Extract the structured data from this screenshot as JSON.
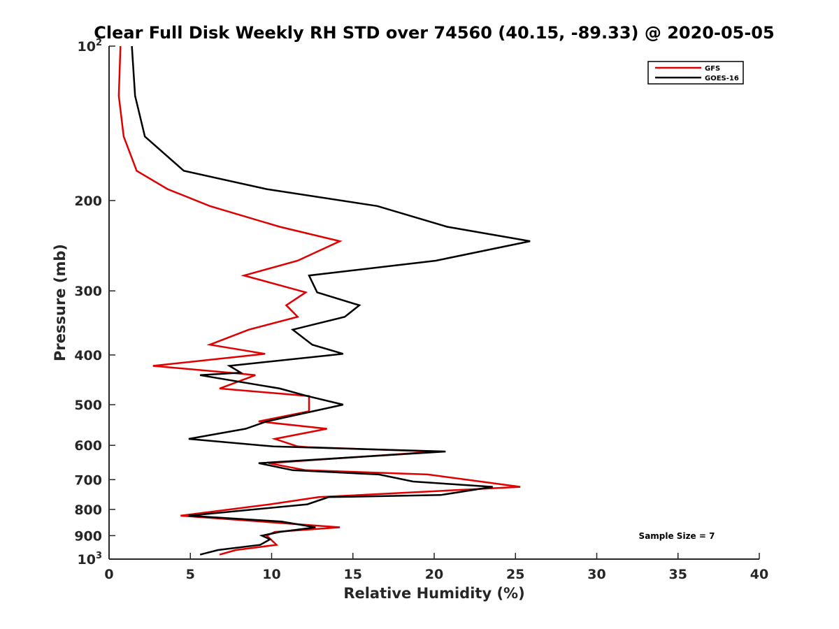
{
  "chart_data": {
    "type": "line",
    "title": "Clear Full Disk Weekly RH STD over 74560 (40.15, -89.33) @ 2020-05-05",
    "xlabel": "Relative Humidity (%)",
    "ylabel": "Pressure (mb)",
    "xlim": [
      0,
      40
    ],
    "ylim": [
      100,
      1000
    ],
    "yscale": "log",
    "y_reversed": true,
    "x_ticks": [
      "0",
      "5",
      "10",
      "15",
      "20",
      "25",
      "30",
      "35",
      "40"
    ],
    "y_ticks": [
      {
        "value": 100,
        "base": "10",
        "exp": "2"
      },
      {
        "value": 200,
        "label": "200"
      },
      {
        "value": 300,
        "label": "300"
      },
      {
        "value": 400,
        "label": "400"
      },
      {
        "value": 500,
        "label": "500"
      },
      {
        "value": 600,
        "label": "600"
      },
      {
        "value": 700,
        "label": "700"
      },
      {
        "value": 800,
        "label": "800"
      },
      {
        "value": 900,
        "label": "900"
      },
      {
        "value": 1000,
        "base": "10",
        "exp": "3"
      }
    ],
    "legend_position": "top-right",
    "grid": false,
    "annotation": "Sample Size = 7",
    "series": [
      {
        "name": "GFS",
        "color": "#e00000",
        "points": [
          [
            0.7,
            100
          ],
          [
            0.6,
            125
          ],
          [
            0.9,
            150
          ],
          [
            1.7,
            175
          ],
          [
            3.6,
            190
          ],
          [
            6.2,
            205
          ],
          [
            10.5,
            225
          ],
          [
            14.2,
            240
          ],
          [
            11.6,
            262
          ],
          [
            8.3,
            280
          ],
          [
            12.1,
            302
          ],
          [
            10.9,
            320
          ],
          [
            11.6,
            337
          ],
          [
            8.6,
            357
          ],
          [
            6.2,
            382
          ],
          [
            9.6,
            398
          ],
          [
            2.7,
            420
          ],
          [
            7.4,
            433
          ],
          [
            9.0,
            438
          ],
          [
            6.8,
            465
          ],
          [
            12.3,
            481
          ],
          [
            12.3,
            500
          ],
          [
            12.3,
            515
          ],
          [
            9.2,
            539
          ],
          [
            13.4,
            557
          ],
          [
            10.2,
            583
          ],
          [
            11.6,
            603
          ],
          [
            12.2,
            605
          ],
          [
            20.1,
            617
          ],
          [
            9.8,
            650
          ],
          [
            12.1,
            671
          ],
          [
            19.6,
            684
          ],
          [
            25.3,
            723
          ],
          [
            12.9,
            757
          ],
          [
            9.9,
            782
          ],
          [
            4.4,
            823
          ],
          [
            14.2,
            867
          ],
          [
            10.2,
            885
          ],
          [
            9.7,
            900
          ],
          [
            10.3,
            938
          ],
          [
            7.8,
            960
          ],
          [
            6.8,
            980
          ]
        ]
      },
      {
        "name": "GOES-16",
        "color": "#000000",
        "points": [
          [
            1.4,
            100
          ],
          [
            1.6,
            125
          ],
          [
            2.2,
            150
          ],
          [
            4.6,
            175
          ],
          [
            9.7,
            190
          ],
          [
            16.5,
            205
          ],
          [
            20.8,
            225
          ],
          [
            25.9,
            240
          ],
          [
            20.1,
            262
          ],
          [
            12.3,
            280
          ],
          [
            12.8,
            302
          ],
          [
            15.4,
            320
          ],
          [
            14.5,
            337
          ],
          [
            11.3,
            357
          ],
          [
            12.5,
            382
          ],
          [
            14.4,
            398
          ],
          [
            7.4,
            420
          ],
          [
            8.1,
            433
          ],
          [
            5.6,
            438
          ],
          [
            10.5,
            465
          ],
          [
            12.2,
            481
          ],
          [
            14.4,
            500
          ],
          [
            9.7,
            539
          ],
          [
            8.4,
            557
          ],
          [
            4.9,
            583
          ],
          [
            10.1,
            603
          ],
          [
            20.7,
            617
          ],
          [
            9.2,
            650
          ],
          [
            11.3,
            671
          ],
          [
            16.6,
            684
          ],
          [
            18.7,
            706
          ],
          [
            23.6,
            723
          ],
          [
            20.4,
            750
          ],
          [
            13.5,
            757
          ],
          [
            12.2,
            782
          ],
          [
            4.9,
            823
          ],
          [
            10.6,
            845
          ],
          [
            12.7,
            867
          ],
          [
            10.5,
            885
          ],
          [
            9.4,
            900
          ],
          [
            9.9,
            915
          ],
          [
            9.3,
            938
          ],
          [
            6.7,
            960
          ],
          [
            5.6,
            980
          ]
        ]
      }
    ]
  }
}
